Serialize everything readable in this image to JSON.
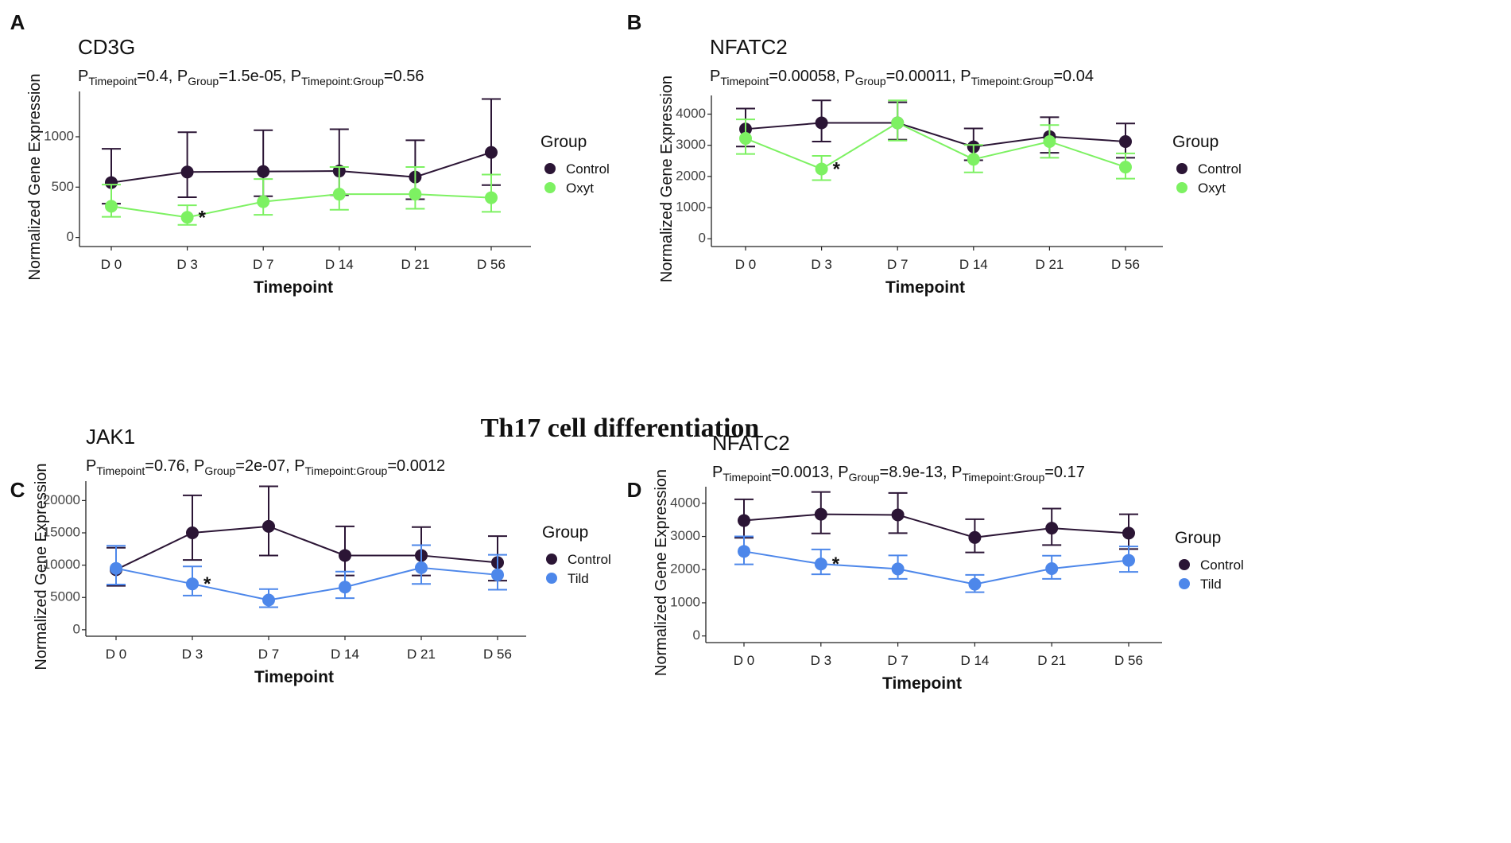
{
  "figure": {
    "section_title": "Th17 cell differentiation",
    "significance_marker": "*"
  },
  "colors": {
    "control": "#2b1535",
    "oxyt": "#7df162",
    "tild": "#4d87ea",
    "axis": "#222222",
    "text": "#111111"
  },
  "chart_data": [
    {
      "panel": "A",
      "type": "line",
      "title": "CD3G",
      "pvalues": [
        {
          "sub": "Timepoint",
          "val": "=0.4, "
        },
        {
          "sub": "Group",
          "val": "=1.5e-05, "
        },
        {
          "sub": "Timepoint:Group",
          "val": "=0.56"
        }
      ],
      "xlabel": "Timepoint",
      "ylabel": "Normalized Gene Expression",
      "categories": [
        "D 0",
        "D 3",
        "D 7",
        "D 14",
        "D 21",
        "D 56"
      ],
      "ylim": [
        -90,
        1450
      ],
      "yticks": [
        0,
        500,
        1000
      ],
      "legend_title": "Group",
      "series": [
        {
          "name": "Control",
          "color_key": "control",
          "values": [
            545,
            650,
            655,
            660,
            600,
            845
          ],
          "err_low": [
            335,
            400,
            410,
            420,
            380,
            520
          ],
          "err_high": [
            880,
            1045,
            1065,
            1075,
            965,
            1375
          ]
        },
        {
          "name": "Oxyt",
          "color_key": "oxyt",
          "values": [
            310,
            200,
            355,
            430,
            430,
            395
          ],
          "err_low": [
            205,
            125,
            225,
            275,
            285,
            255
          ],
          "err_high": [
            525,
            320,
            580,
            700,
            700,
            625
          ]
        }
      ],
      "significance": [
        1
      ]
    },
    {
      "panel": "B",
      "type": "line",
      "title": "NFATC2",
      "pvalues": [
        {
          "sub": "Timepoint",
          "val": "=0.00058, "
        },
        {
          "sub": "Group",
          "val": "=0.00011, "
        },
        {
          "sub": "Timepoint:Group",
          "val": "=0.04"
        }
      ],
      "xlabel": "Timepoint",
      "ylabel": "Normalized Gene Expression",
      "categories": [
        "D 0",
        "D 3",
        "D 7",
        "D 14",
        "D 21",
        "D 56"
      ],
      "ylim": [
        -250,
        4600
      ],
      "yticks": [
        0,
        1000,
        2000,
        3000,
        4000
      ],
      "legend_title": "Group",
      "series": [
        {
          "name": "Control",
          "color_key": "control",
          "values": [
            3520,
            3720,
            3720,
            2950,
            3280,
            3120
          ],
          "err_low": [
            2960,
            3120,
            3180,
            2520,
            2760,
            2600
          ],
          "err_high": [
            4180,
            4440,
            4380,
            3540,
            3900,
            3700
          ]
        },
        {
          "name": "Oxyt",
          "color_key": "oxyt",
          "values": [
            3220,
            2240,
            3720,
            2550,
            3120,
            2300
          ],
          "err_low": [
            2720,
            1880,
            3150,
            2130,
            2600,
            1930
          ],
          "err_high": [
            3830,
            2660,
            4440,
            3010,
            3650,
            2740
          ]
        }
      ],
      "significance": [
        1
      ]
    },
    {
      "panel": "C",
      "type": "line",
      "title": "JAK1",
      "pvalues": [
        {
          "sub": "Timepoint",
          "val": "=0.76, "
        },
        {
          "sub": "Group",
          "val": "=2e-07, "
        },
        {
          "sub": "Timepoint:Group",
          "val": "=0.0012"
        }
      ],
      "xlabel": "Timepoint",
      "ylabel": "Normalized Gene Expression",
      "categories": [
        "D 0",
        "D 3",
        "D 7",
        "D 14",
        "D 21",
        "D 56"
      ],
      "ylim": [
        -1000,
        23000
      ],
      "yticks": [
        0,
        5000,
        10000,
        15000,
        20000
      ],
      "legend_title": "Group",
      "series": [
        {
          "name": "Control",
          "color_key": "control",
          "values": [
            9300,
            15000,
            16000,
            11500,
            11500,
            10400
          ],
          "err_low": [
            6800,
            10800,
            11500,
            8400,
            8400,
            7600
          ],
          "err_high": [
            12700,
            20800,
            22200,
            16000,
            15900,
            14500
          ]
        },
        {
          "name": "Tild",
          "color_key": "tild",
          "values": [
            9500,
            7100,
            4600,
            6600,
            9600,
            8500
          ],
          "err_low": [
            7000,
            5300,
            3500,
            4900,
            7100,
            6200
          ],
          "err_high": [
            13000,
            9800,
            6300,
            9000,
            13100,
            11600
          ]
        }
      ],
      "significance": [
        1
      ]
    },
    {
      "panel": "D",
      "type": "line",
      "title": "NFATC2",
      "pvalues": [
        {
          "sub": "Timepoint",
          "val": "=0.0013, "
        },
        {
          "sub": "Group",
          "val": "=8.9e-13, "
        },
        {
          "sub": "Timepoint:Group",
          "val": "=0.17"
        }
      ],
      "xlabel": "Timepoint",
      "ylabel": "Normalized Gene Expression",
      "categories": [
        "D 0",
        "D 3",
        "D 7",
        "D 14",
        "D 21",
        "D 56"
      ],
      "ylim": [
        -200,
        4500
      ],
      "yticks": [
        0,
        1000,
        2000,
        3000,
        4000
      ],
      "legend_title": "Group",
      "series": [
        {
          "name": "Control",
          "color_key": "control",
          "values": [
            3480,
            3670,
            3650,
            2970,
            3250,
            3100
          ],
          "err_low": [
            2960,
            3090,
            3100,
            2520,
            2740,
            2620
          ],
          "err_high": [
            4120,
            4340,
            4310,
            3520,
            3840,
            3670
          ]
        },
        {
          "name": "Tild",
          "color_key": "tild",
          "values": [
            2550,
            2170,
            2020,
            1560,
            2030,
            2280
          ],
          "err_low": [
            2160,
            1860,
            1720,
            1320,
            1720,
            1930
          ],
          "err_high": [
            3000,
            2610,
            2430,
            1840,
            2420,
            2700
          ]
        }
      ],
      "significance": [
        1
      ]
    }
  ]
}
